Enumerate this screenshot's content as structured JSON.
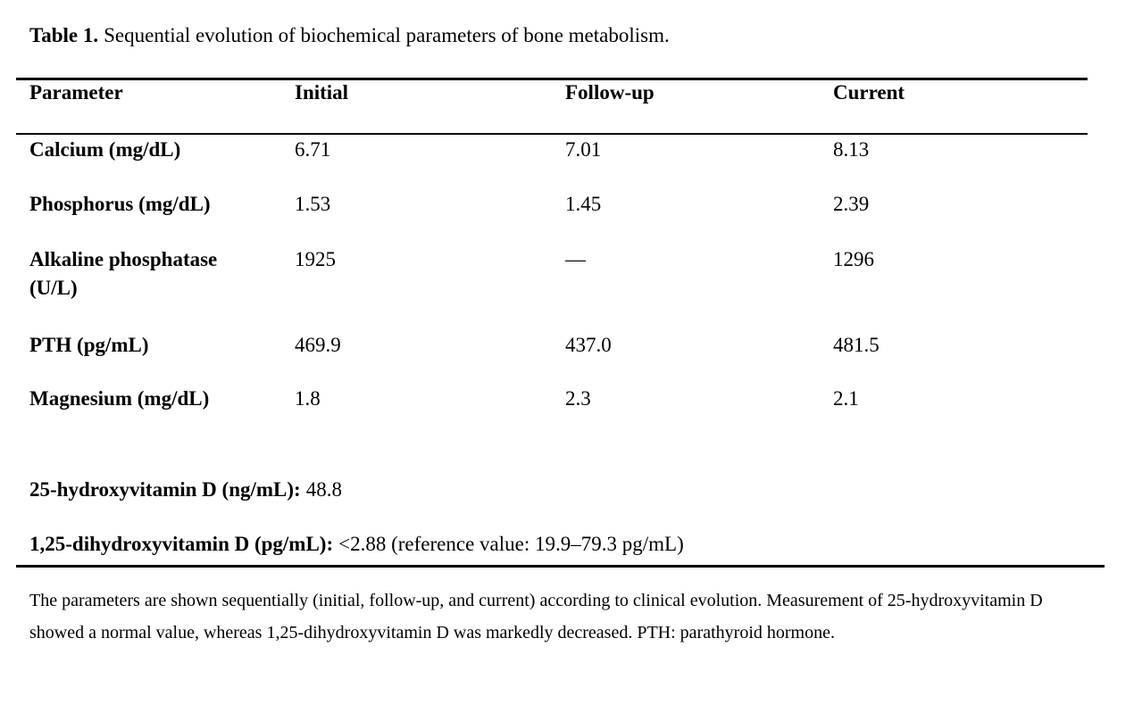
{
  "caption": {
    "label": "Table 1.",
    "text": "Sequential evolution of biochemical parameters of bone metabolism."
  },
  "table": {
    "columns": [
      "Parameter",
      "Initial",
      "Follow-up",
      "Current"
    ],
    "rows": [
      {
        "parameter": "Calcium (mg/dL)",
        "initial": "6.71",
        "follow_up": "7.01",
        "current": "8.13"
      },
      {
        "parameter": "Phosphorus (mg/dL)",
        "initial": "1.53",
        "follow_up": "1.45",
        "current": "2.39"
      },
      {
        "parameter": "Alkaline phosphatase\n(U/L)",
        "initial": "1925",
        "follow_up": "—",
        "current": "1296"
      },
      {
        "parameter": "PTH (pg/mL)",
        "initial": "469.9",
        "follow_up": "437.0",
        "current": "481.5"
      },
      {
        "parameter": "Magnesium (mg/dL)",
        "initial": "1.8",
        "follow_up": "2.3",
        "current": "2.1"
      }
    ],
    "extra_rows": [
      {
        "label": "25-hydroxyvitamin D (ng/mL):",
        "value": "48.8"
      },
      {
        "label": "1,25-dihydroxyvitamin D (pg/mL):",
        "value": "<2.88 (reference value: 19.9–79.3 pg/mL)"
      }
    ]
  },
  "footnote": "The parameters are shown sequentially (initial, follow-up, and current) according to clinical evolution. Measurement of 25-hydroxyvitamin D showed a normal value, whereas 1,25-dihydroxyvitamin D was markedly decreased. PTH: parathyroid hormone."
}
